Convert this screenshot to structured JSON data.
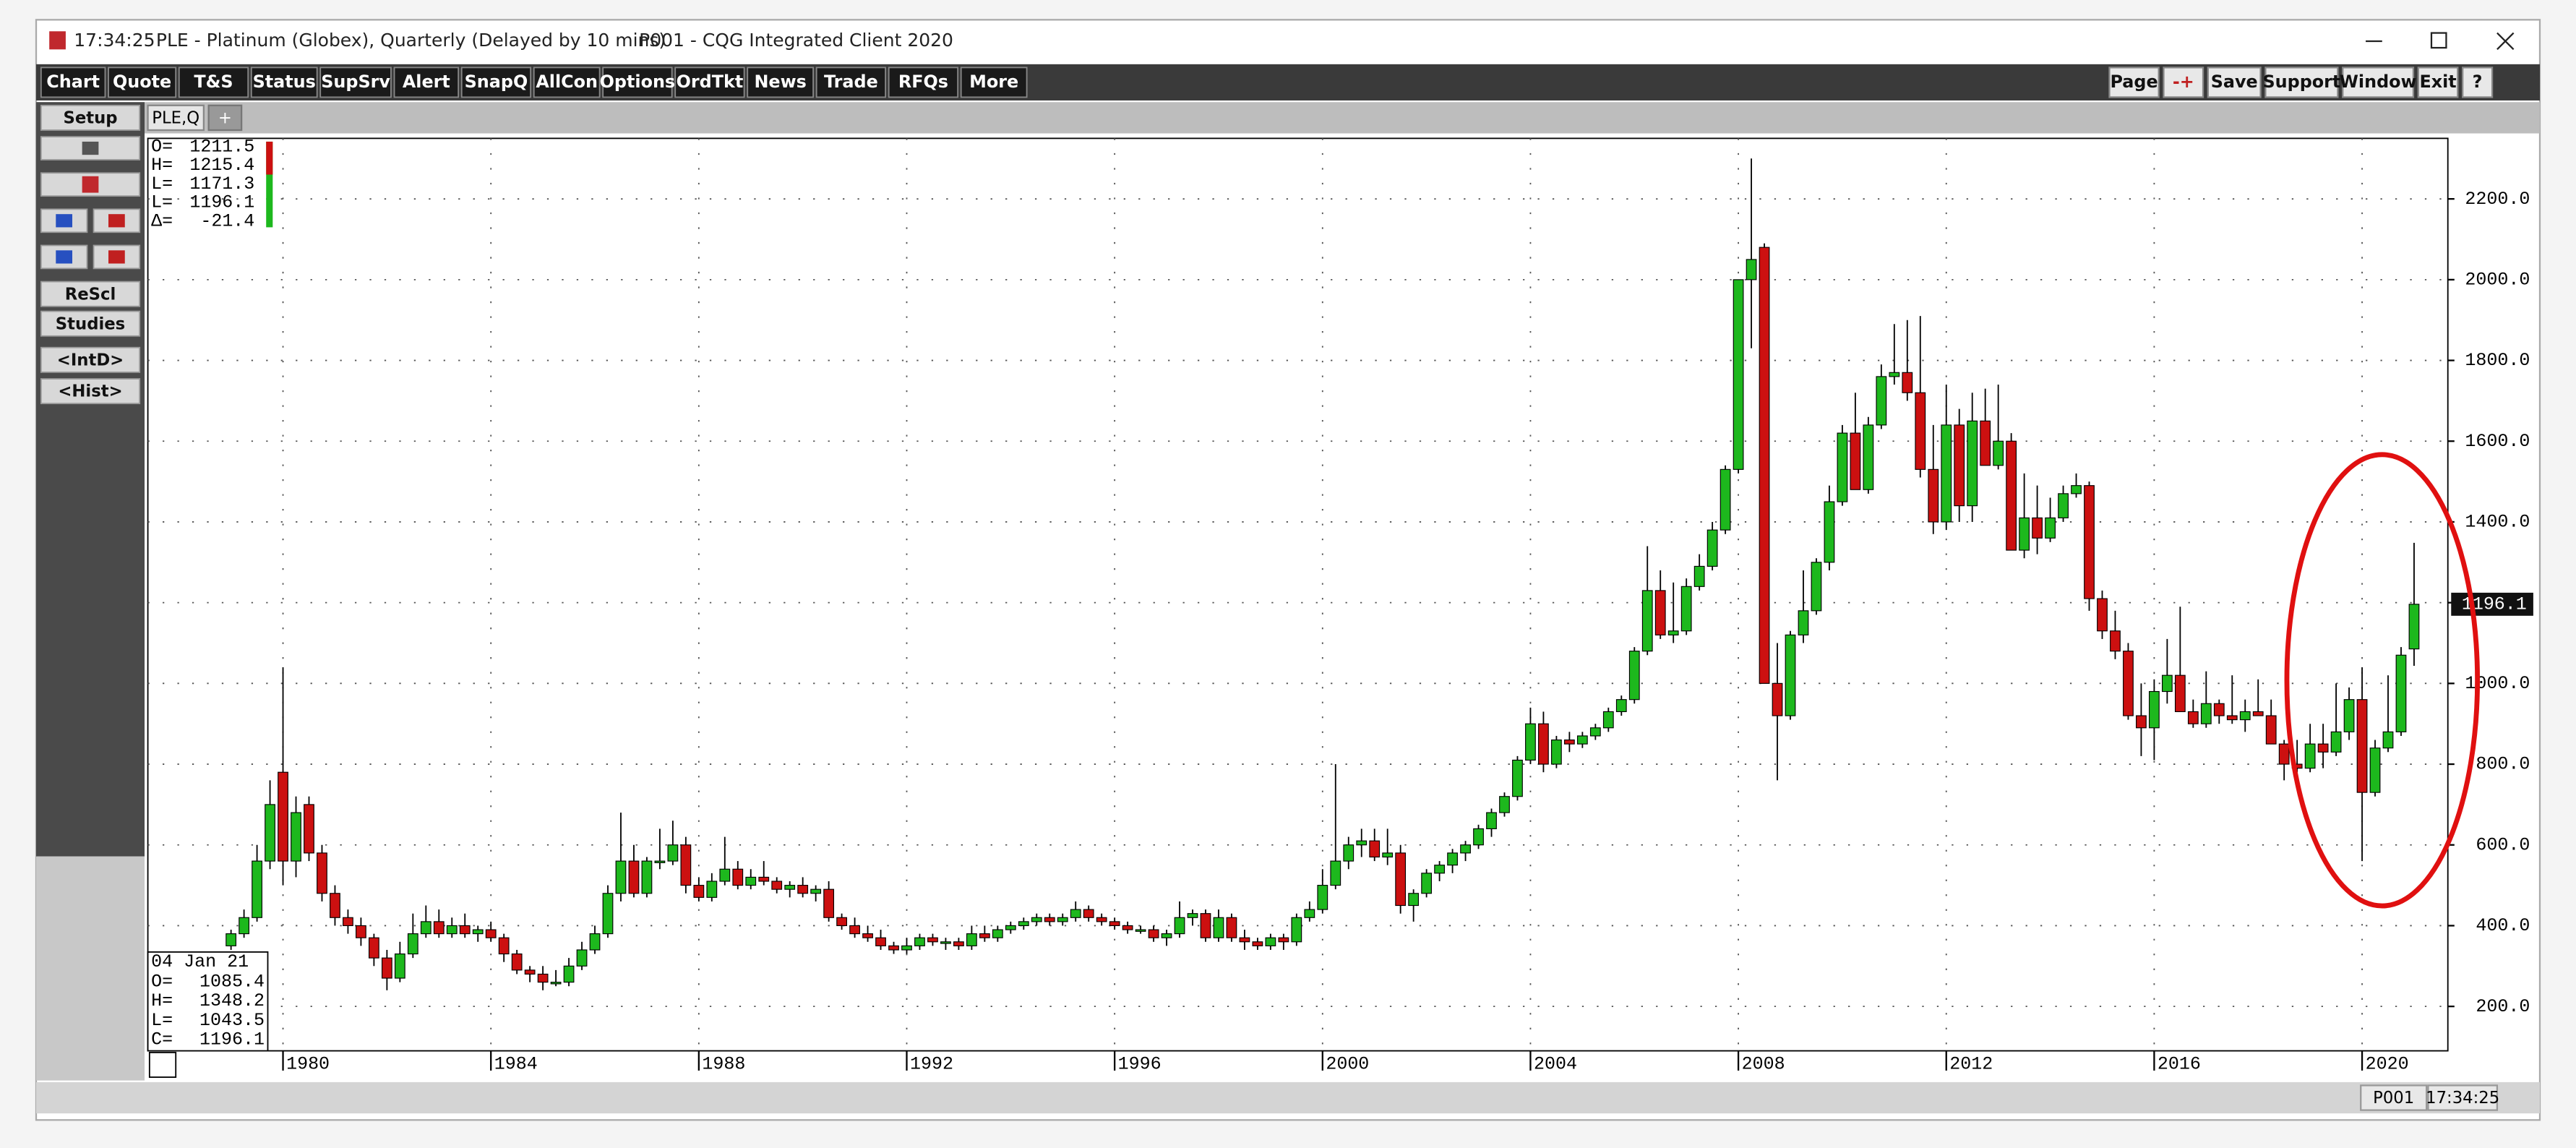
{
  "window": {
    "time": "17:34:25",
    "title": "PLE - Platinum (Globex), Quarterly (Delayed by 10 mins)",
    "client": "P001 - CQG Integrated Client 2020"
  },
  "toolbar": {
    "left": [
      "Chart",
      "Quote",
      "T&S",
      "Status",
      "SupSrv",
      "Alert",
      "SnapQ",
      "AllCon",
      "Options",
      "OrdTkt",
      "News",
      "Trade",
      "RFQs",
      "More"
    ],
    "right": [
      "Page",
      "-+",
      "Save",
      "Support",
      "Window",
      "Exit",
      "?"
    ]
  },
  "sidebar": [
    "Setup",
    "ReScl",
    "Studies",
    "<IntD>",
    "<Hist>"
  ],
  "tab": "PLE,Q",
  "tab_add": "+",
  "status_bar": {
    "page": "P001",
    "time": "17:34:25"
  },
  "chart_data": {
    "type": "candlestick",
    "top_box": {
      "labels": [
        "O=",
        "H=",
        "L=",
        "L=",
        "Δ="
      ],
      "values": [
        1211.5,
        1215.4,
        1171.3,
        1196.1,
        -21.4
      ]
    },
    "bottom_box": {
      "date": "04 Jan 21",
      "labels": [
        "O=",
        "H=",
        "L=",
        "C="
      ],
      "values": [
        1085.4,
        1348.2,
        1043.5,
        1196.1
      ]
    },
    "up_color": "#1db81d",
    "down_color": "#cc1010",
    "grid": true,
    "xlim": [
      1977.4,
      2021.65
    ],
    "xticks": [
      1980,
      1984,
      1988,
      1992,
      1996,
      2000,
      2004,
      2008,
      2012,
      2016,
      2020
    ],
    "ylim": [
      90,
      2350
    ],
    "yticks": [
      {
        "value": 200,
        "label": "200.0"
      },
      {
        "value": 400,
        "label": "400.0"
      },
      {
        "value": 600,
        "label": "600.0"
      },
      {
        "value": 800,
        "label": "800.0"
      },
      {
        "value": 1000,
        "label": "1000.0"
      },
      {
        "value": 1200,
        "label": "1200.0"
      },
      {
        "value": 1400,
        "label": "1400.0"
      },
      {
        "value": 1600,
        "label": "1600.0"
      },
      {
        "value": 1800,
        "label": "1800.0"
      },
      {
        "value": 2000,
        "label": "2000.0"
      },
      {
        "value": 2200,
        "label": "2200.0"
      }
    ],
    "last_price": 1196.1,
    "x": [
      1979,
      1979.25,
      1979.5,
      1979.75,
      1980,
      1980.25,
      1980.5,
      1980.75,
      1981,
      1981.25,
      1981.5,
      1981.75,
      1982,
      1982.25,
      1982.5,
      1982.75,
      1983,
      1983.25,
      1983.5,
      1983.75,
      1984,
      1984.25,
      1984.5,
      1984.75,
      1985,
      1985.25,
      1985.5,
      1985.75,
      1986,
      1986.25,
      1986.5,
      1986.75,
      1987,
      1987.25,
      1987.5,
      1987.75,
      1988,
      1988.25,
      1988.5,
      1988.75,
      1989,
      1989.25,
      1989.5,
      1989.75,
      1990,
      1990.25,
      1990.5,
      1990.75,
      1991,
      1991.25,
      1991.5,
      1991.75,
      1992,
      1992.25,
      1992.5,
      1992.75,
      1993,
      1993.25,
      1993.5,
      1993.75,
      1994,
      1994.25,
      1994.5,
      1994.75,
      1995,
      1995.25,
      1995.5,
      1995.75,
      1996,
      1996.25,
      1996.5,
      1996.75,
      1997,
      1997.25,
      1997.5,
      1997.75,
      1998,
      1998.25,
      1998.5,
      1998.75,
      1999,
      1999.25,
      1999.5,
      1999.75,
      2000,
      2000.25,
      2000.5,
      2000.75,
      2001,
      2001.25,
      2001.5,
      2001.75,
      2002,
      2002.25,
      2002.5,
      2002.75,
      2003,
      2003.25,
      2003.5,
      2003.75,
      2004,
      2004.25,
      2004.5,
      2004.75,
      2005,
      2005.25,
      2005.5,
      2005.75,
      2006,
      2006.25,
      2006.5,
      2006.75,
      2007,
      2007.25,
      2007.5,
      2007.75,
      2008,
      2008.25,
      2008.5,
      2008.75,
      2009,
      2009.25,
      2009.5,
      2009.75,
      2010,
      2010.25,
      2010.5,
      2010.75,
      2011,
      2011.25,
      2011.5,
      2011.75,
      2012,
      2012.25,
      2012.5,
      2012.75,
      2013,
      2013.25,
      2013.5,
      2013.75,
      2014,
      2014.25,
      2014.5,
      2014.75,
      2015,
      2015.25,
      2015.5,
      2015.75,
      2016,
      2016.25,
      2016.5,
      2016.75,
      2017,
      2017.25,
      2017.5,
      2017.75,
      2018,
      2018.25,
      2018.5,
      2018.75,
      2019,
      2019.25,
      2019.5,
      2019.75,
      2020,
      2020.25,
      2020.5,
      2020.75,
      2021
    ],
    "values": [
      [
        350,
        390,
        340,
        380
      ],
      [
        380,
        440,
        370,
        420
      ],
      [
        420,
        600,
        410,
        560
      ],
      [
        560,
        760,
        540,
        700
      ],
      [
        780,
        1040,
        500,
        560
      ],
      [
        560,
        720,
        520,
        680
      ],
      [
        700,
        720,
        560,
        580
      ],
      [
        580,
        600,
        460,
        480
      ],
      [
        480,
        500,
        400,
        420
      ],
      [
        420,
        440,
        380,
        400
      ],
      [
        400,
        420,
        350,
        370
      ],
      [
        370,
        380,
        300,
        320
      ],
      [
        320,
        340,
        240,
        270
      ],
      [
        270,
        360,
        260,
        330
      ],
      [
        330,
        430,
        320,
        380
      ],
      [
        380,
        450,
        370,
        410
      ],
      [
        410,
        440,
        370,
        380
      ],
      [
        380,
        420,
        370,
        400
      ],
      [
        400,
        430,
        370,
        380
      ],
      [
        380,
        400,
        360,
        390
      ],
      [
        390,
        410,
        360,
        370
      ],
      [
        370,
        380,
        310,
        330
      ],
      [
        330,
        340,
        280,
        290
      ],
      [
        290,
        300,
        260,
        280
      ],
      [
        280,
        300,
        240,
        260
      ],
      [
        260,
        290,
        250,
        260
      ],
      [
        260,
        320,
        250,
        300
      ],
      [
        300,
        360,
        290,
        340
      ],
      [
        340,
        400,
        330,
        380
      ],
      [
        380,
        500,
        370,
        480
      ],
      [
        480,
        680,
        460,
        560
      ],
      [
        560,
        600,
        470,
        480
      ],
      [
        480,
        570,
        470,
        560
      ],
      [
        560,
        640,
        540,
        560
      ],
      [
        560,
        660,
        550,
        600
      ],
      [
        600,
        620,
        480,
        500
      ],
      [
        500,
        520,
        460,
        470
      ],
      [
        470,
        530,
        460,
        510
      ],
      [
        510,
        620,
        500,
        540
      ],
      [
        540,
        560,
        490,
        500
      ],
      [
        500,
        540,
        490,
        520
      ],
      [
        520,
        560,
        500,
        510
      ],
      [
        510,
        520,
        480,
        490
      ],
      [
        490,
        510,
        470,
        500
      ],
      [
        500,
        520,
        470,
        480
      ],
      [
        480,
        500,
        460,
        490
      ],
      [
        490,
        510,
        410,
        420
      ],
      [
        420,
        430,
        390,
        400
      ],
      [
        400,
        420,
        370,
        380
      ],
      [
        380,
        400,
        360,
        370
      ],
      [
        370,
        390,
        340,
        350
      ],
      [
        350,
        360,
        330,
        340
      ],
      [
        340,
        370,
        330,
        350
      ],
      [
        350,
        380,
        340,
        370
      ],
      [
        370,
        380,
        350,
        360
      ],
      [
        360,
        370,
        340,
        360
      ],
      [
        360,
        370,
        340,
        350
      ],
      [
        350,
        400,
        340,
        380
      ],
      [
        380,
        400,
        360,
        370
      ],
      [
        370,
        400,
        360,
        390
      ],
      [
        390,
        410,
        380,
        400
      ],
      [
        400,
        420,
        390,
        410
      ],
      [
        410,
        430,
        400,
        420
      ],
      [
        420,
        430,
        400,
        410
      ],
      [
        410,
        430,
        400,
        420
      ],
      [
        420,
        460,
        410,
        440
      ],
      [
        440,
        450,
        410,
        420
      ],
      [
        420,
        430,
        400,
        410
      ],
      [
        410,
        420,
        390,
        400
      ],
      [
        400,
        410,
        380,
        390
      ],
      [
        390,
        400,
        380,
        390
      ],
      [
        390,
        400,
        360,
        370
      ],
      [
        370,
        390,
        350,
        380
      ],
      [
        380,
        460,
        370,
        420
      ],
      [
        420,
        440,
        400,
        430
      ],
      [
        430,
        440,
        360,
        370
      ],
      [
        370,
        440,
        360,
        420
      ],
      [
        420,
        430,
        360,
        370
      ],
      [
        370,
        390,
        340,
        360
      ],
      [
        360,
        370,
        340,
        350
      ],
      [
        350,
        380,
        340,
        370
      ],
      [
        370,
        380,
        340,
        360
      ],
      [
        360,
        430,
        350,
        420
      ],
      [
        420,
        460,
        410,
        440
      ],
      [
        440,
        540,
        430,
        500
      ],
      [
        500,
        800,
        490,
        560
      ],
      [
        560,
        620,
        540,
        600
      ],
      [
        600,
        640,
        570,
        610
      ],
      [
        610,
        640,
        560,
        570
      ],
      [
        570,
        640,
        550,
        580
      ],
      [
        580,
        600,
        430,
        450
      ],
      [
        450,
        490,
        410,
        480
      ],
      [
        480,
        540,
        470,
        530
      ],
      [
        530,
        560,
        510,
        550
      ],
      [
        550,
        590,
        530,
        580
      ],
      [
        580,
        610,
        560,
        600
      ],
      [
        600,
        650,
        590,
        640
      ],
      [
        640,
        690,
        620,
        680
      ],
      [
        680,
        730,
        670,
        720
      ],
      [
        720,
        820,
        710,
        810
      ],
      [
        810,
        940,
        800,
        900
      ],
      [
        900,
        930,
        780,
        800
      ],
      [
        800,
        870,
        790,
        860
      ],
      [
        860,
        880,
        830,
        850
      ],
      [
        850,
        880,
        840,
        870
      ],
      [
        870,
        900,
        860,
        890
      ],
      [
        890,
        940,
        880,
        930
      ],
      [
        930,
        970,
        920,
        960
      ],
      [
        960,
        1090,
        950,
        1080
      ],
      [
        1080,
        1340,
        1070,
        1230
      ],
      [
        1230,
        1280,
        1110,
        1120
      ],
      [
        1120,
        1250,
        1100,
        1130
      ],
      [
        1130,
        1260,
        1120,
        1240
      ],
      [
        1240,
        1320,
        1230,
        1290
      ],
      [
        1290,
        1400,
        1280,
        1380
      ],
      [
        1380,
        1540,
        1370,
        1530
      ],
      [
        1530,
        2000,
        1520,
        2000
      ],
      [
        2000,
        2300,
        1830,
        2050
      ],
      [
        2080,
        2090,
        1000,
        1000
      ],
      [
        1000,
        1100,
        760,
        920
      ],
      [
        920,
        1130,
        910,
        1120
      ],
      [
        1120,
        1280,
        1100,
        1180
      ],
      [
        1180,
        1310,
        1170,
        1300
      ],
      [
        1300,
        1490,
        1280,
        1450
      ],
      [
        1450,
        1640,
        1440,
        1620
      ],
      [
        1620,
        1720,
        1480,
        1480
      ],
      [
        1480,
        1660,
        1470,
        1640
      ],
      [
        1640,
        1790,
        1630,
        1760
      ],
      [
        1760,
        1890,
        1740,
        1770
      ],
      [
        1770,
        1900,
        1700,
        1720
      ],
      [
        1720,
        1910,
        1510,
        1530
      ],
      [
        1530,
        1640,
        1370,
        1400
      ],
      [
        1400,
        1740,
        1380,
        1640
      ],
      [
        1640,
        1680,
        1400,
        1440
      ],
      [
        1440,
        1720,
        1400,
        1650
      ],
      [
        1650,
        1730,
        1540,
        1540
      ],
      [
        1540,
        1740,
        1530,
        1600
      ],
      [
        1600,
        1620,
        1330,
        1330
      ],
      [
        1330,
        1520,
        1310,
        1410
      ],
      [
        1410,
        1490,
        1320,
        1360
      ],
      [
        1360,
        1460,
        1350,
        1410
      ],
      [
        1410,
        1490,
        1400,
        1470
      ],
      [
        1470,
        1520,
        1460,
        1490
      ],
      [
        1490,
        1500,
        1180,
        1210
      ],
      [
        1210,
        1230,
        1110,
        1130
      ],
      [
        1130,
        1180,
        1060,
        1080
      ],
      [
        1080,
        1100,
        910,
        920
      ],
      [
        920,
        1000,
        820,
        890
      ],
      [
        890,
        1010,
        810,
        980
      ],
      [
        980,
        1110,
        950,
        1020
      ],
      [
        1020,
        1190,
        980,
        930
      ],
      [
        930,
        960,
        890,
        900
      ],
      [
        900,
        1030,
        890,
        950
      ],
      [
        950,
        960,
        900,
        920
      ],
      [
        920,
        1020,
        900,
        910
      ],
      [
        910,
        960,
        880,
        930
      ],
      [
        930,
        1010,
        920,
        920
      ],
      [
        920,
        960,
        850,
        850
      ],
      [
        850,
        860,
        760,
        800
      ],
      [
        800,
        860,
        780,
        790
      ],
      [
        790,
        900,
        780,
        850
      ],
      [
        850,
        900,
        790,
        830
      ],
      [
        830,
        1000,
        820,
        880
      ],
      [
        880,
        990,
        860,
        960
      ],
      [
        960,
        1040,
        560,
        730
      ],
      [
        730,
        860,
        720,
        840
      ],
      [
        840,
        1020,
        830,
        880
      ],
      [
        880,
        1090,
        870,
        1070
      ],
      [
        1085.4,
        1348.2,
        1043.5,
        1196.1
      ]
    ]
  }
}
